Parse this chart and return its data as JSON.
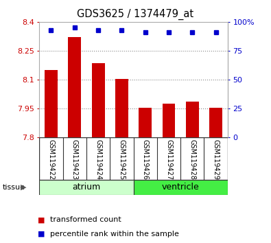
{
  "title": "GDS3625 / 1374479_at",
  "samples": [
    "GSM119422",
    "GSM119423",
    "GSM119424",
    "GSM119425",
    "GSM119426",
    "GSM119427",
    "GSM119428",
    "GSM119429"
  ],
  "bar_values": [
    8.15,
    8.32,
    8.185,
    8.105,
    7.955,
    7.975,
    7.985,
    7.952
  ],
  "percentile_values": [
    93,
    95,
    93,
    93,
    91,
    91,
    91,
    91
  ],
  "bar_color": "#cc0000",
  "percentile_color": "#0000cc",
  "ylim_left": [
    7.8,
    8.4
  ],
  "ylim_right": [
    0,
    100
  ],
  "yticks_left": [
    7.8,
    7.95,
    8.1,
    8.25,
    8.4
  ],
  "yticks_right": [
    0,
    25,
    50,
    75,
    100
  ],
  "ytick_labels_left": [
    "7.8",
    "7.95",
    "8.1",
    "8.25",
    "8.4"
  ],
  "ytick_labels_right": [
    "0",
    "25",
    "50",
    "75",
    "100%"
  ],
  "groups": [
    {
      "label": "atrium",
      "indices": [
        0,
        1,
        2,
        3
      ],
      "color": "#ccffcc"
    },
    {
      "label": "ventricle",
      "indices": [
        4,
        5,
        6,
        7
      ],
      "color": "#44ee44"
    }
  ],
  "tissue_label": "tissue",
  "legend_items": [
    {
      "label": "transformed count",
      "color": "#cc0000"
    },
    {
      "label": "percentile rank within the sample",
      "color": "#0000cc"
    }
  ],
  "background_color": "#ffffff",
  "plot_bg_color": "#ffffff",
  "grid_color": "#888888",
  "bar_width": 0.55,
  "base_value": 7.8,
  "label_bg_color": "#d8d8d8",
  "label_border_color": "#333333"
}
